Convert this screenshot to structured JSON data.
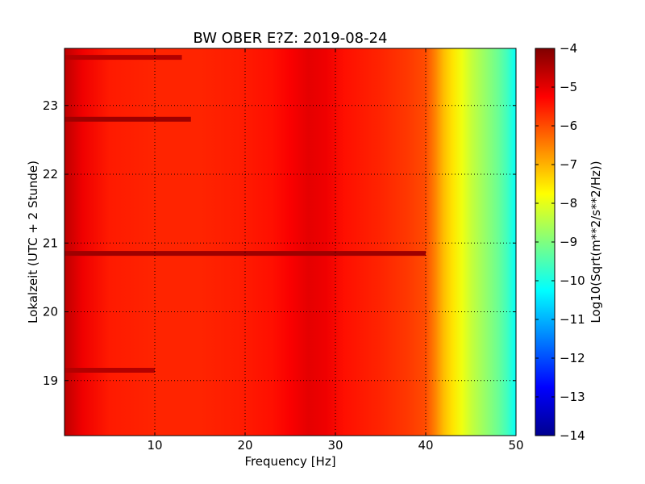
{
  "chart_data": {
    "type": "heatmap",
    "title": "BW OBER E?Z: 2019-08-24",
    "xlabel": "Frequency [Hz]",
    "ylabel": "Lokalzeit (UTC + 2 Stunde)",
    "xlim": [
      0,
      50
    ],
    "ylim": [
      23.83,
      18.2
    ],
    "x_ticks": [
      10,
      20,
      30,
      40,
      50
    ],
    "x_tick_labels": [
      "10",
      "20",
      "30",
      "40",
      "50"
    ],
    "y_ticks": [
      19,
      20,
      21,
      22,
      23
    ],
    "y_tick_labels": [
      "19",
      "20",
      "21",
      "22",
      "23"
    ],
    "grid": true,
    "grid_style": "dotted",
    "colormap": "jet",
    "colorbar": {
      "label": "Log10(Sqrt(m**2/s**2/Hz))",
      "range": [
        -14,
        -4
      ],
      "ticks": [
        -4,
        -5,
        -6,
        -7,
        -8,
        -9,
        -10,
        -11,
        -12,
        -13,
        -14
      ],
      "tick_labels": [
        "−4",
        "−5",
        "−6",
        "−7",
        "−8",
        "−9",
        "−10",
        "−11",
        "−12",
        "−13",
        "−14"
      ]
    },
    "frequency_profile": {
      "x": [
        0,
        2,
        5,
        10,
        15,
        20,
        23,
        25,
        27,
        29,
        31,
        35,
        38,
        40,
        41,
        42,
        43,
        44,
        45,
        46,
        47,
        48,
        49,
        50
      ],
      "values": [
        -4.6,
        -5.1,
        -5.5,
        -5.6,
        -5.6,
        -5.5,
        -5.4,
        -5.2,
        -5.0,
        -5.1,
        -5.4,
        -5.6,
        -5.8,
        -6.0,
        -6.5,
        -7.1,
        -7.5,
        -7.9,
        -8.3,
        -8.6,
        -8.9,
        -9.2,
        -9.6,
        -10.2
      ]
    },
    "strong_time_bands": [
      {
        "time": 19.15,
        "fmax": 10,
        "value": -4.5
      },
      {
        "time": 20.85,
        "fmax": 40,
        "value": -4.3
      },
      {
        "time": 22.8,
        "fmax": 14,
        "value": -4.3
      },
      {
        "time": 23.7,
        "fmax": 13,
        "value": -4.5
      }
    ]
  }
}
